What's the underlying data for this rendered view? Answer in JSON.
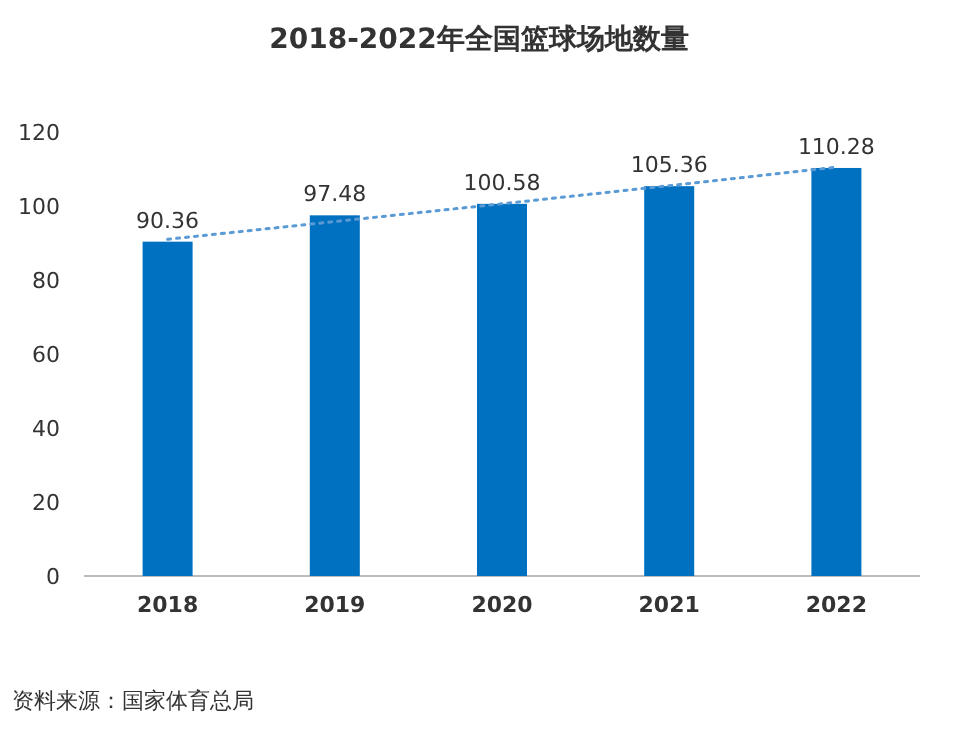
{
  "chart_data": {
    "type": "bar",
    "title": "2018-2022年全国篮球场地数量",
    "categories": [
      "2018",
      "2019",
      "2020",
      "2021",
      "2022"
    ],
    "series": [
      {
        "color": "#0070c0",
        "values": [
          90.36,
          97.48,
          100.58,
          105.36,
          110.28
        ],
        "value_labels": [
          "90.36",
          "97.48",
          "100.58",
          "105.36",
          "110.28"
        ]
      },
      {
        "type": "line",
        "color": "#5b9bd5",
        "line_style": "dotted",
        "values": [
          91,
          95.8,
          100.6,
          105.5,
          110.5
        ]
      }
    ],
    "ylim": [
      0,
      120
    ],
    "yticks": [
      0,
      20,
      40,
      60,
      80,
      100,
      120
    ],
    "grid": false,
    "annotations": [
      "资料来源：国家体育总局"
    ]
  }
}
